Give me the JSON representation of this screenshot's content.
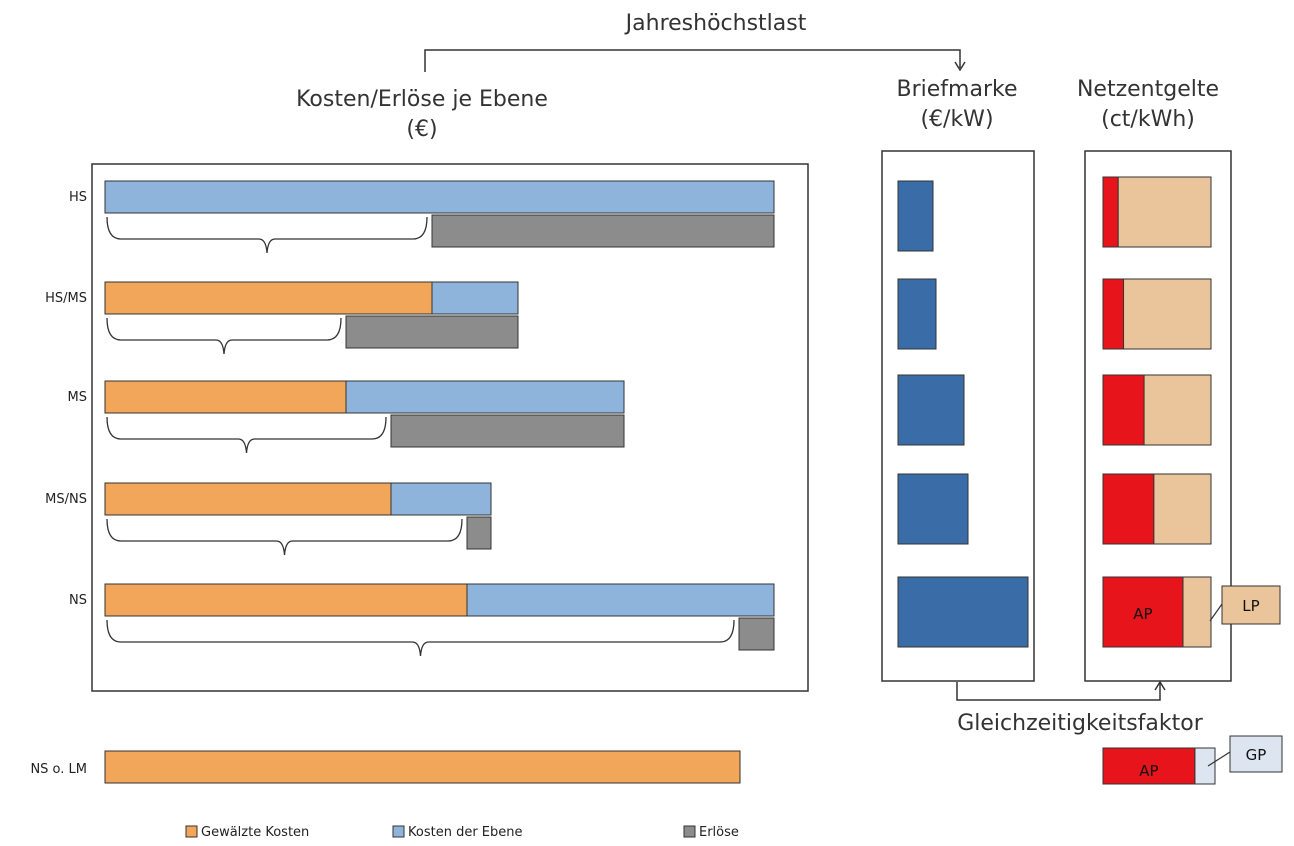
{
  "titles": {
    "top_center": "Jahreshöchstlast",
    "costs_line1": "Kosten/Erlöse je Ebene",
    "costs_line2": "(€)",
    "stamp_line1": "Briefmarke",
    "stamp_line2": "(€/kW)",
    "fees_line1": "Netzentgelte",
    "fees_line2": "(ct/kWh)",
    "simultaneity": "Gleichzeitigkeitsfaktor"
  },
  "levels": [
    "HS",
    "HS/MS",
    "MS",
    "MS/NS",
    "NS"
  ],
  "ns_ohne_lm_label": "NS o. LM",
  "tags": {
    "ap": "AP",
    "lp": "LP",
    "gp": "GP"
  },
  "legend": [
    {
      "label": "Gewälzte Kosten",
      "color": "#f2a65a"
    },
    {
      "label": "Kosten der Ebene",
      "color": "#8fb4dc"
    },
    {
      "label": "Erlöse",
      "color": "#8c8c8c"
    }
  ],
  "colors": {
    "rolled_costs": "#f2a65a",
    "level_costs": "#8fb4dc",
    "revenues": "#8c8c8c",
    "stamp": "#3a6ca8",
    "energy_price": "#e8141b",
    "power_price": "#eac49a",
    "base_price": "#dde6f0"
  },
  "chart_data": {
    "type": "bar",
    "categories": [
      "HS",
      "HS/MS",
      "MS",
      "MS/NS",
      "NS"
    ],
    "series": [
      {
        "name": "Gewälzte Kosten",
        "values": [
          0,
          327,
          241,
          286,
          362
        ]
      },
      {
        "name": "Kosten der Ebene",
        "values": [
          669,
          86,
          278,
          100,
          307
        ]
      },
      {
        "name": "Erlöse",
        "values": [
          342,
          172,
          233,
          24,
          35
        ]
      }
    ],
    "ns_ohne_lm": 635,
    "briefmarke": [
      35,
      38,
      66,
      70,
      130
    ],
    "netzentgelte_ap_share": [
      0.14,
      0.19,
      0.38,
      0.47,
      0.74
    ],
    "ns_ohne_lm_ap_share": 0.82
  }
}
